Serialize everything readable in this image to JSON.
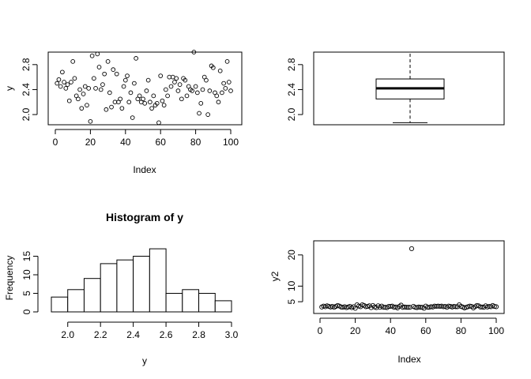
{
  "chart_data": [
    {
      "type": "scatter",
      "panel": "top-left",
      "title": "",
      "xlabel": "Index",
      "ylabel": "y",
      "xlim": [
        0,
        100
      ],
      "ylim": [
        1.9,
        3.0
      ],
      "xticks": [
        0,
        20,
        40,
        60,
        80,
        100
      ],
      "yticks": [
        2.0,
        2.4,
        2.8
      ],
      "ytick_labels": [
        "2.0",
        "2.4",
        "2.8"
      ],
      "x": [
        1,
        2,
        3,
        4,
        5,
        6,
        7,
        8,
        9,
        10,
        11,
        12,
        13,
        14,
        15,
        16,
        17,
        18,
        19,
        20,
        21,
        22,
        23,
        24,
        25,
        26,
        27,
        28,
        29,
        30,
        31,
        32,
        33,
        34,
        35,
        36,
        37,
        38,
        39,
        40,
        41,
        42,
        43,
        44,
        45,
        46,
        47,
        48,
        49,
        50,
        51,
        52,
        53,
        54,
        55,
        56,
        57,
        58,
        59,
        60,
        61,
        62,
        63,
        64,
        65,
        66,
        67,
        68,
        69,
        70,
        71,
        72,
        73,
        74,
        75,
        76,
        77,
        78,
        79,
        80,
        81,
        82,
        83,
        84,
        85,
        86,
        87,
        88,
        89,
        90,
        91,
        92,
        93,
        94,
        95,
        96,
        97,
        98,
        99,
        100
      ],
      "y": [
        2.5,
        2.56,
        2.45,
        2.68,
        2.52,
        2.42,
        2.48,
        2.22,
        2.52,
        2.85,
        2.58,
        2.3,
        2.25,
        2.4,
        2.1,
        2.33,
        2.45,
        2.15,
        2.42,
        1.89,
        2.94,
        2.58,
        2.42,
        2.97,
        2.76,
        2.4,
        2.48,
        2.65,
        2.08,
        2.85,
        2.35,
        2.12,
        2.72,
        2.2,
        2.65,
        2.2,
        2.25,
        2.1,
        2.45,
        2.55,
        2.62,
        2.2,
        2.35,
        1.95,
        2.5,
        2.9,
        2.25,
        2.3,
        2.2,
        2.25,
        2.18,
        2.38,
        2.55,
        2.2,
        2.1,
        2.3,
        2.15,
        2.18,
        1.87,
        2.62,
        2.22,
        2.15,
        2.4,
        2.3,
        2.6,
        2.45,
        2.6,
        2.52,
        2.58,
        2.38,
        2.48,
        2.25,
        2.58,
        2.55,
        2.3,
        2.45,
        2.4,
        2.38,
        3.0,
        2.45,
        2.35,
        2.02,
        2.18,
        2.4,
        2.6,
        2.55,
        2.0,
        2.38,
        2.78,
        2.75,
        2.35,
        2.3,
        2.2,
        2.7,
        2.35,
        2.5,
        2.42,
        2.85,
        2.52,
        2.38
      ]
    },
    {
      "type": "box",
      "panel": "top-right",
      "title": "",
      "ylim": [
        1.9,
        3.0
      ],
      "yticks": [
        2.0,
        2.4,
        2.8
      ],
      "ytick_labels": [
        "2.0",
        "2.4",
        "2.8"
      ],
      "min": 1.87,
      "q1": 2.25,
      "median": 2.42,
      "q3": 2.57,
      "max": 3.0
    },
    {
      "type": "bar",
      "panel": "bottom-left",
      "title": "Histogram of y",
      "xlabel": "y",
      "ylabel": "Frequency",
      "xlim": [
        1.9,
        3.0
      ],
      "ylim": [
        0,
        20
      ],
      "xticks": [
        2.0,
        2.2,
        2.4,
        2.6,
        2.8,
        3.0
      ],
      "xtick_labels": [
        "2.0",
        "2.2",
        "2.4",
        "2.6",
        "2.8",
        "3.0"
      ],
      "yticks": [
        0,
        5,
        10,
        15
      ],
      "bin_edges": [
        1.9,
        2.0,
        2.1,
        2.2,
        2.3,
        2.4,
        2.5,
        2.6,
        2.7,
        2.8,
        2.9,
        3.0
      ],
      "values": [
        4,
        6,
        9,
        13,
        14,
        15,
        17,
        5,
        6,
        5,
        3
      ]
    },
    {
      "type": "scatter",
      "panel": "bottom-right",
      "title": "",
      "xlabel": "Index",
      "ylabel": "y2",
      "xlim": [
        0,
        100
      ],
      "ylim": [
        2.5,
        23
      ],
      "xticks": [
        0,
        20,
        40,
        60,
        80,
        100
      ],
      "yticks": [
        5,
        10,
        20
      ],
      "x": [
        1,
        2,
        3,
        4,
        5,
        6,
        7,
        8,
        9,
        10,
        11,
        12,
        13,
        14,
        15,
        16,
        17,
        18,
        19,
        20,
        21,
        22,
        23,
        24,
        25,
        26,
        27,
        28,
        29,
        30,
        31,
        32,
        33,
        34,
        35,
        36,
        37,
        38,
        39,
        40,
        41,
        42,
        43,
        44,
        45,
        46,
        47,
        48,
        49,
        50,
        51,
        52,
        53,
        54,
        55,
        56,
        57,
        58,
        59,
        60,
        61,
        62,
        63,
        64,
        65,
        66,
        67,
        68,
        69,
        70,
        71,
        72,
        73,
        74,
        75,
        76,
        77,
        78,
        79,
        80,
        81,
        82,
        83,
        84,
        85,
        86,
        87,
        88,
        89,
        90,
        91,
        92,
        93,
        94,
        95,
        96,
        97,
        98,
        99,
        100
      ],
      "y": [
        3.3,
        3.6,
        3.4,
        3.7,
        3.5,
        3.3,
        3.5,
        3.2,
        3.5,
        3.8,
        3.6,
        3.3,
        3.2,
        3.4,
        3.1,
        3.3,
        3.5,
        3.1,
        3.4,
        2.9,
        4.0,
        3.6,
        3.4,
        4.0,
        3.8,
        3.4,
        3.5,
        3.7,
        3.1,
        3.8,
        3.3,
        3.1,
        3.7,
        3.2,
        3.6,
        3.2,
        3.2,
        3.1,
        3.5,
        3.5,
        3.6,
        3.2,
        3.3,
        3.0,
        3.5,
        3.9,
        3.2,
        3.3,
        3.2,
        3.2,
        3.2,
        22.0,
        3.5,
        3.2,
        3.1,
        3.3,
        3.2,
        3.2,
        2.9,
        3.6,
        3.2,
        3.2,
        3.4,
        3.3,
        3.6,
        3.5,
        3.6,
        3.5,
        3.6,
        3.4,
        3.5,
        3.2,
        3.6,
        3.5,
        3.3,
        3.5,
        3.4,
        3.4,
        4.0,
        3.5,
        3.3,
        3.0,
        3.2,
        3.4,
        3.6,
        3.5,
        3.0,
        3.4,
        3.8,
        3.7,
        3.3,
        3.3,
        3.2,
        3.7,
        3.3,
        3.5,
        3.4,
        3.8,
        3.5,
        3.4
      ]
    }
  ]
}
